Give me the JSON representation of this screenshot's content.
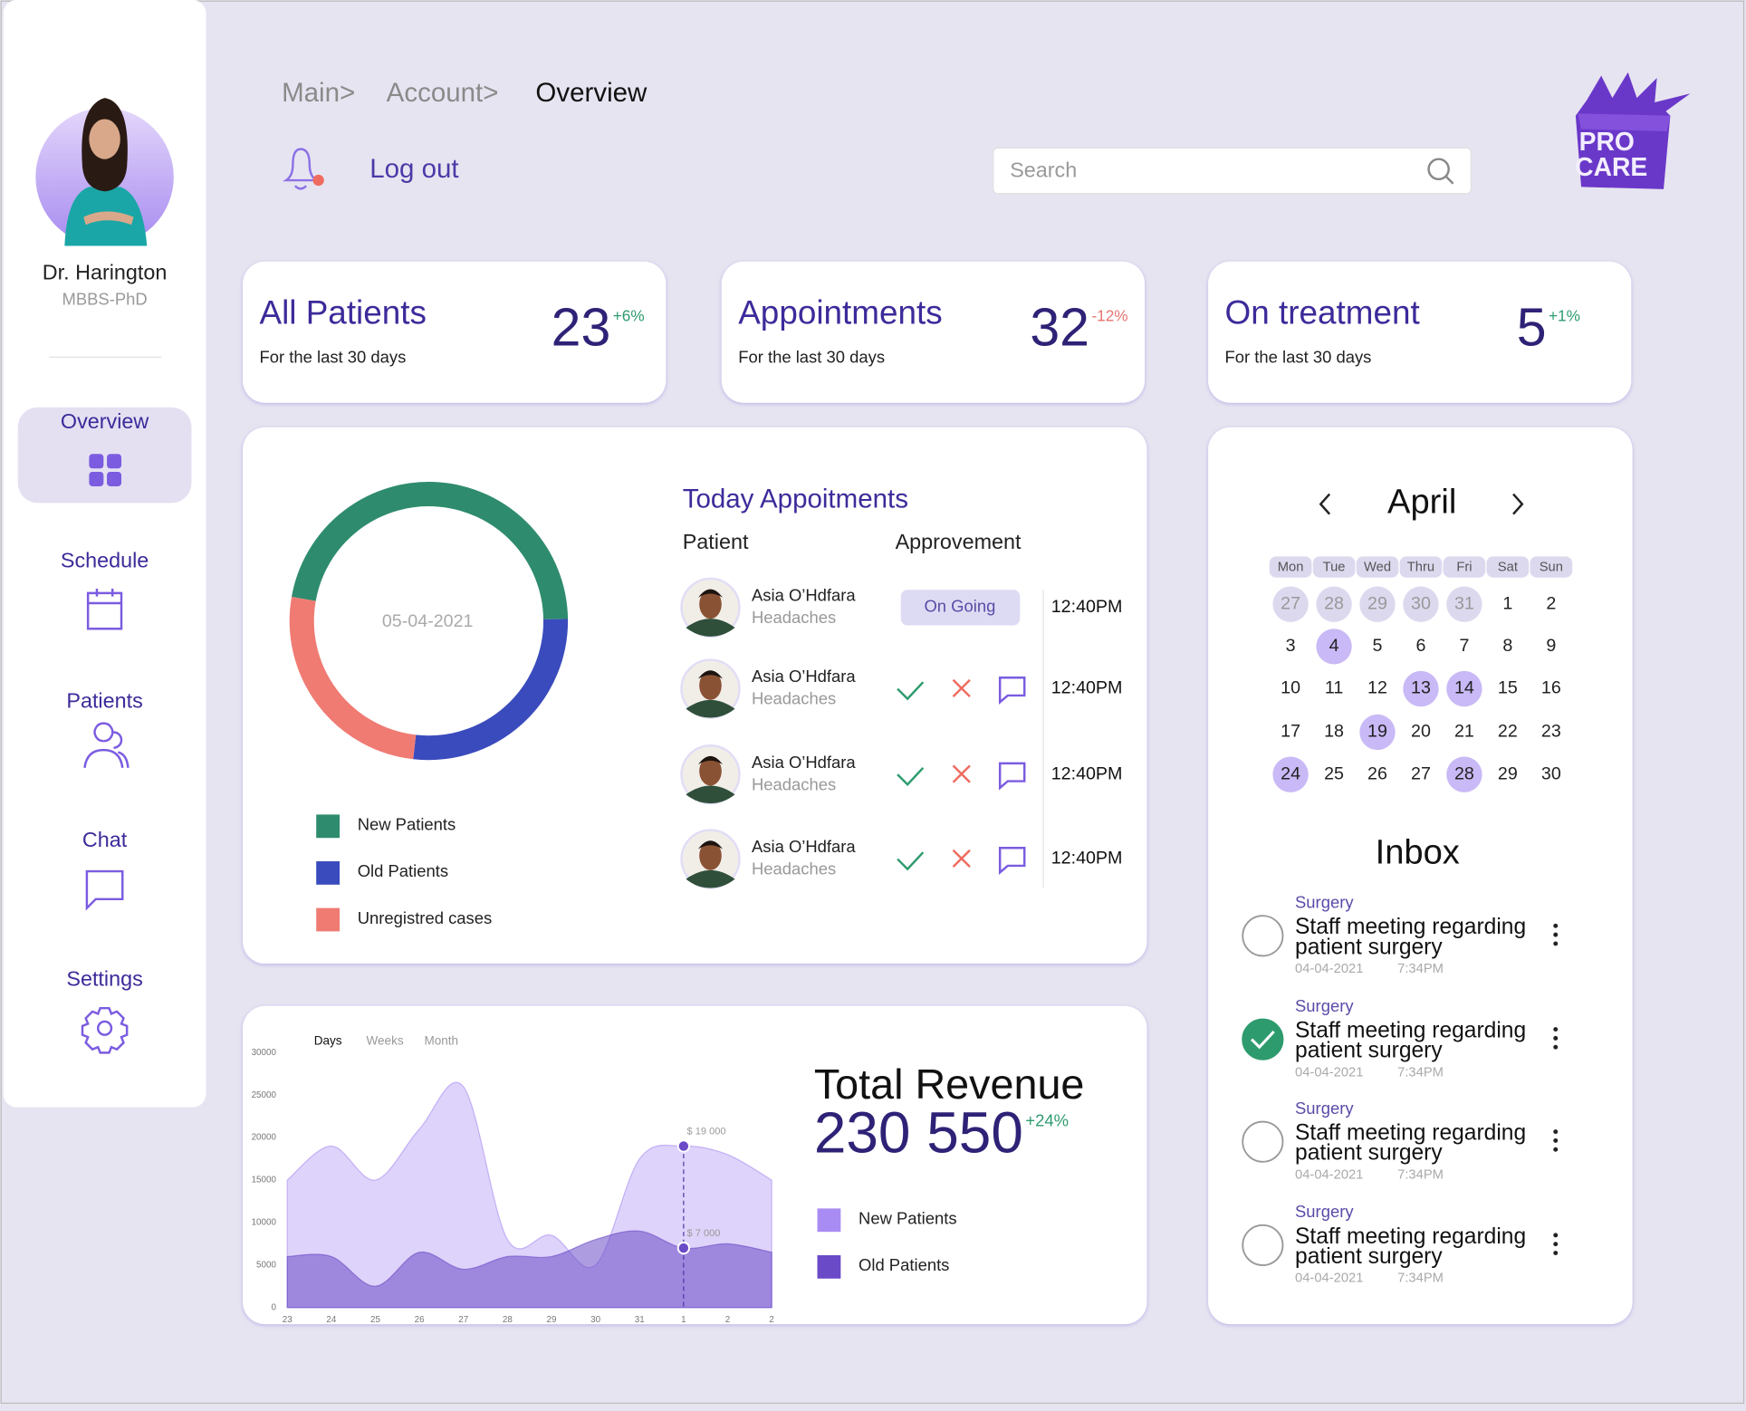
{
  "profile": {
    "name": "Dr. Harington",
    "degree": "MBBS-PhD"
  },
  "nav": {
    "items": [
      "Overview",
      "Schedule",
      "Patients",
      "Chat",
      "Settings"
    ],
    "active": "Overview"
  },
  "header": {
    "breadcrumb": [
      "Main>",
      "Account>",
      "Overview"
    ],
    "logout": "Log out",
    "search_placeholder": "Search",
    "logo": [
      "PRO",
      "CARE"
    ]
  },
  "stats": [
    {
      "title": "All Patients",
      "subtitle": "For the last 30 days",
      "value": 23,
      "change": "+6%"
    },
    {
      "title": "Appointments",
      "subtitle": "For the last 30 days",
      "value": 32,
      "change": "-12%"
    },
    {
      "title": "On treatment",
      "subtitle": "For the last 30 days",
      "value": 5,
      "change": "+1%"
    }
  ],
  "appointments": {
    "title": "Today Appoitments",
    "columns": [
      "Patient",
      "Approvement"
    ],
    "rows": [
      {
        "name": "Asia O’Hdfara",
        "condition": "Headaches",
        "status": "On Going",
        "time": "12:40PM"
      },
      {
        "name": "Asia O’Hdfara",
        "condition": "Headaches",
        "time": "12:40PM"
      },
      {
        "name": "Asia O’Hdfara",
        "condition": "Headaches",
        "time": "12:40PM"
      },
      {
        "name": "Asia O’Hdfara",
        "condition": "Headaches",
        "time": "12:40PM"
      }
    ]
  },
  "calendar": {
    "month": "April",
    "weekdays": [
      "Mon",
      "Tue",
      "Wed",
      "Thru",
      "Fri",
      "Sat",
      "Sun"
    ],
    "leading_days": [
      27,
      28,
      29,
      30,
      31
    ],
    "days": [
      1,
      2,
      3,
      4,
      5,
      6,
      7,
      8,
      9,
      10,
      11,
      12,
      13,
      14,
      15,
      16,
      17,
      18,
      19,
      20,
      21,
      22,
      23,
      24,
      25,
      26,
      27,
      28,
      29,
      30
    ],
    "highlighted": [
      4,
      13,
      14,
      19,
      24,
      28
    ]
  },
  "inbox": {
    "title": "Inbox",
    "items": [
      {
        "category": "Surgery",
        "title_lines": [
          "Staff meeting regarding",
          "patient surgery"
        ],
        "date": "04-04-2021",
        "time": "7:34PM",
        "done": false
      },
      {
        "category": "Surgery",
        "title_lines": [
          "Staff meeting regarding",
          "patient surgery"
        ],
        "date": "04-04-2021",
        "time": "7:34PM",
        "done": true
      },
      {
        "category": "Surgery",
        "title_lines": [
          "Staff meeting regarding",
          "patient surgery"
        ],
        "date": "04-04-2021",
        "time": "7:34PM",
        "done": false
      },
      {
        "category": "Surgery",
        "title_lines": [
          "Staff meeting regarding",
          "patient surgery"
        ],
        "date": "04-04-2021",
        "time": "7:34PM",
        "done": false
      }
    ]
  },
  "chart_data": [
    {
      "type": "donut",
      "center_label": "05-04-2021",
      "categories": [
        "New Patients",
        "Old Patients",
        "Unregistred cases"
      ],
      "values": [
        47,
        27,
        26
      ],
      "colors": [
        "#2e8b6e",
        "#3a4bbd",
        "#ef7b73"
      ]
    },
    {
      "type": "area",
      "tabs": [
        "Days",
        "Weeks",
        "Month"
      ],
      "title": "Total Revenue",
      "total": {
        "value": 230550,
        "label": "230 550"
      },
      "change": "+24%",
      "categories": [
        "23",
        "24",
        "25",
        "26",
        "27",
        "28",
        "29",
        "30",
        "31",
        "1",
        "2",
        "2"
      ],
      "series": [
        {
          "name": "New Patients",
          "color": "#a98cf3",
          "values": [
            15000,
            19000,
            15000,
            21000,
            26000,
            8000,
            8500,
            5000,
            17500,
            19000,
            18000,
            15000
          ]
        },
        {
          "name": "Old Patients",
          "color": "#6a4ac7",
          "values": [
            6000,
            6000,
            2500,
            6500,
            4500,
            6000,
            6000,
            8000,
            9000,
            7000,
            7500,
            6500
          ]
        }
      ],
      "ylim": [
        0,
        30000
      ],
      "yticks": [
        0,
        5000,
        10000,
        15000,
        20000,
        25000,
        30000
      ],
      "annotations": [
        {
          "x": "1",
          "value": 19000,
          "label": "$ 19 000"
        },
        {
          "x": "1",
          "value": 7000,
          "label": "$ 7 000"
        }
      ]
    }
  ]
}
